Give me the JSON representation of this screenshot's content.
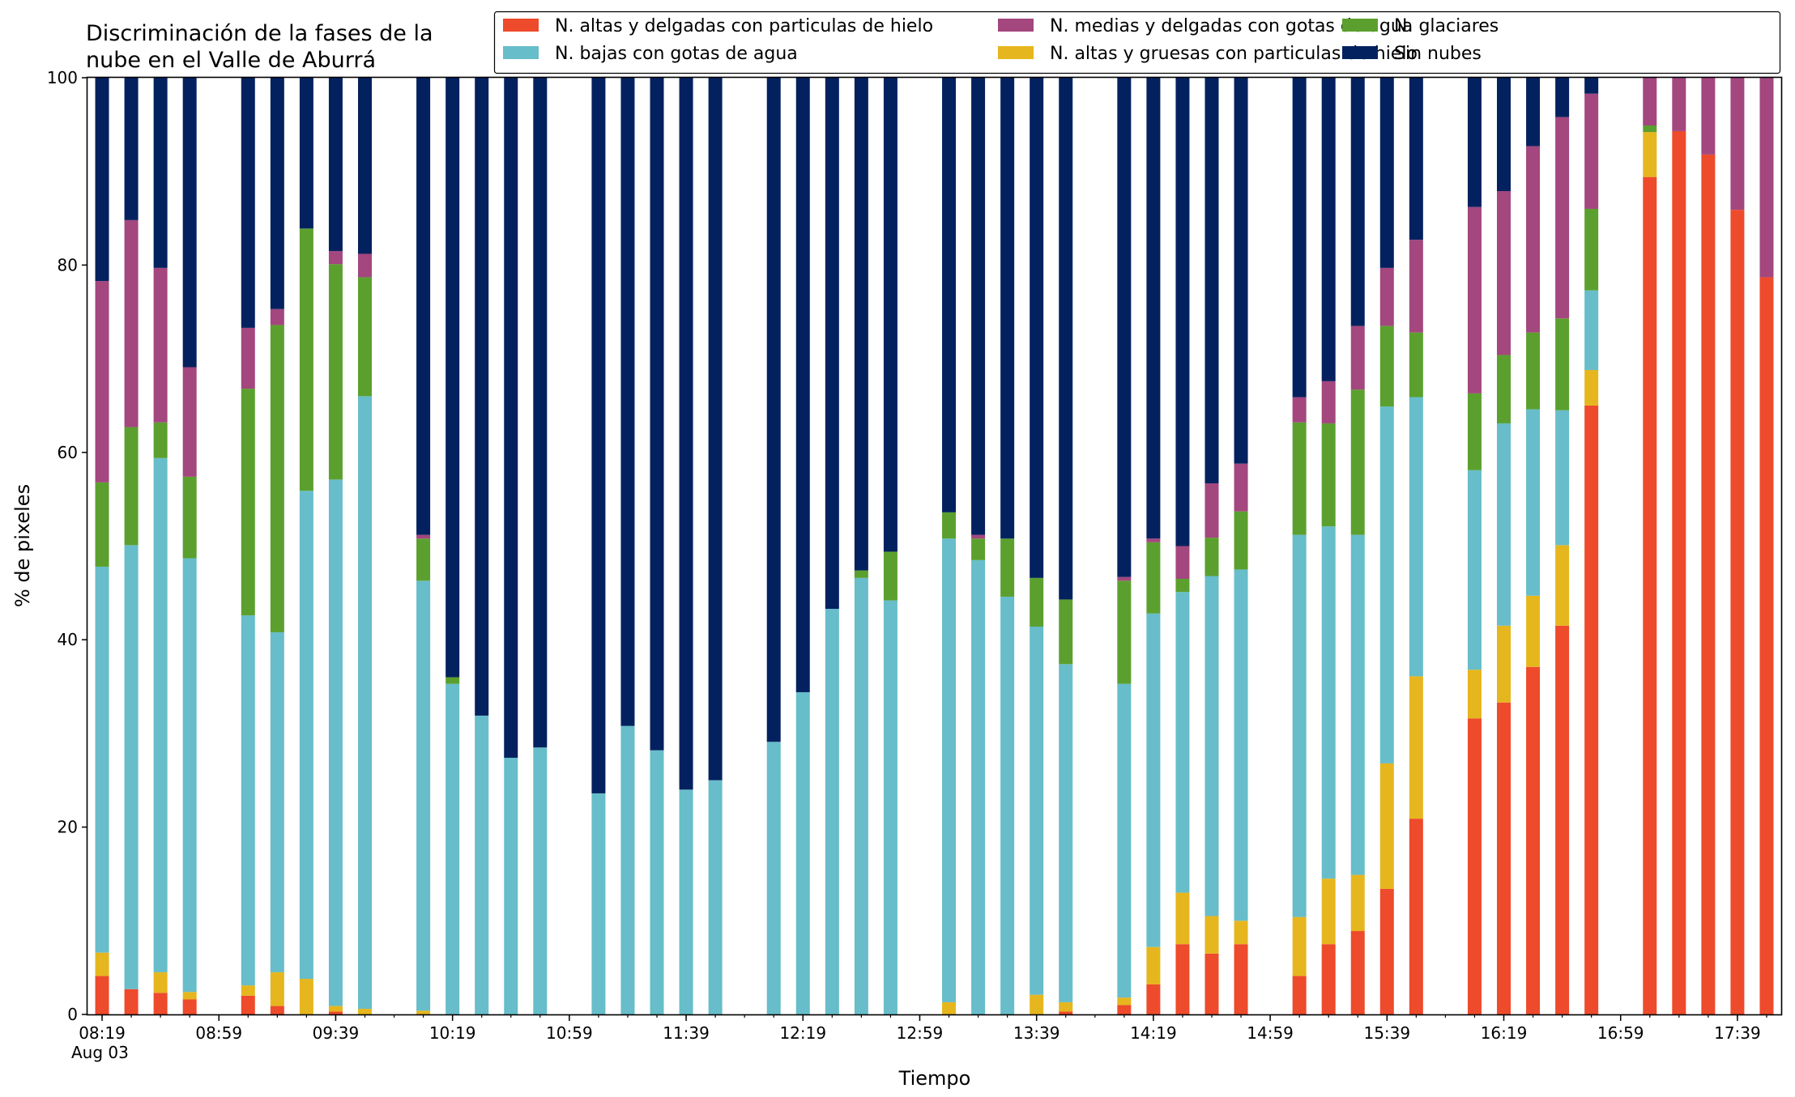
{
  "chart_data": {
    "type": "bar",
    "stacked": true,
    "title_lines": [
      "Discriminación de la fases de la",
      "nube en el Valle de Aburrá"
    ],
    "xlabel": "Tiempo",
    "ylabel": "% de pixeles",
    "ylim": [
      0,
      100
    ],
    "yticks": [
      0,
      20,
      40,
      60,
      80,
      100
    ],
    "grid": false,
    "legend_position": "top-right",
    "xlim_minutes": [
      494,
      1074
    ],
    "x_date_label": "Aug 03",
    "xtick_labels": [
      {
        "minute": 499,
        "label": "08:19"
      },
      {
        "minute": 539,
        "label": "08:59"
      },
      {
        "minute": 579,
        "label": "09:39"
      },
      {
        "minute": 619,
        "label": "10:19"
      },
      {
        "minute": 659,
        "label": "10:59"
      },
      {
        "minute": 699,
        "label": "11:39"
      },
      {
        "minute": 739,
        "label": "12:19"
      },
      {
        "minute": 779,
        "label": "12:59"
      },
      {
        "minute": 819,
        "label": "13:39"
      },
      {
        "minute": 859,
        "label": "14:19"
      },
      {
        "minute": 899,
        "label": "14:59"
      },
      {
        "minute": 939,
        "label": "15:39"
      },
      {
        "minute": 979,
        "label": "16:19"
      },
      {
        "minute": 1019,
        "label": "16:59"
      },
      {
        "minute": 1059,
        "label": "17:39"
      }
    ],
    "minor_tick_step_minutes": 10,
    "series": [
      {
        "key": "altas_delgadas",
        "name": "N. altas y delgadas con particulas de hielo",
        "color": "#ee4a2c"
      },
      {
        "key": "altas_gruesas",
        "name": "N. altas y gruesas con particulas de hielo",
        "color": "#e6b61e"
      },
      {
        "key": "bajas",
        "name": "N. bajas con gotas de agua",
        "color": "#67bdca"
      },
      {
        "key": "glaciares",
        "name": "N. glaciares",
        "color": "#5ba02e"
      },
      {
        "key": "medias",
        "name": "N. medias y delgadas con gotas de agua",
        "color": "#a3477e"
      },
      {
        "key": "sin_nubes",
        "name": "Sin nubes",
        "color": "#04215f"
      }
    ],
    "legend_order": [
      "altas_delgadas",
      "bajas",
      "medias",
      "altas_gruesas",
      "glaciares",
      "sin_nubes"
    ],
    "time_columns": [
      "hh:mm",
      "altas_delgadas",
      "altas_gruesas",
      "bajas",
      "glaciares",
      "medias",
      "sin_nubes"
    ],
    "bars": [
      [
        "08:19",
        4.1,
        2.5,
        41.2,
        9.0,
        21.5,
        21.7
      ],
      [
        "08:29",
        2.7,
        0.0,
        47.4,
        12.6,
        22.1,
        15.2
      ],
      [
        "08:39",
        2.3,
        2.2,
        54.9,
        3.8,
        16.5,
        20.3
      ],
      [
        "08:49",
        1.6,
        0.8,
        46.3,
        8.7,
        11.7,
        30.9
      ],
      [
        "09:09",
        2.0,
        1.1,
        39.5,
        24.2,
        6.5,
        26.7
      ],
      [
        "09:19",
        0.9,
        3.6,
        36.3,
        32.8,
        1.7,
        24.7
      ],
      [
        "09:29",
        0.0,
        3.8,
        52.1,
        28.0,
        0.0,
        16.1
      ],
      [
        "09:39",
        0.3,
        0.6,
        56.2,
        23.0,
        1.4,
        18.5
      ],
      [
        "09:49",
        0.0,
        0.6,
        65.4,
        12.7,
        2.5,
        18.8
      ],
      [
        "10:09",
        0.0,
        0.4,
        45.9,
        4.5,
        0.4,
        48.8
      ],
      [
        "10:19",
        0.0,
        0.0,
        35.3,
        0.7,
        0.0,
        64.0
      ],
      [
        "10:29",
        0.0,
        0.0,
        31.9,
        0.0,
        0.0,
        68.1
      ],
      [
        "10:39",
        0.0,
        0.0,
        27.4,
        0.0,
        0.0,
        72.6
      ],
      [
        "10:49",
        0.0,
        0.0,
        28.5,
        0.0,
        0.0,
        71.5
      ],
      [
        "11:09",
        0.0,
        0.0,
        23.6,
        0.0,
        0.0,
        76.4
      ],
      [
        "11:19",
        0.0,
        0.0,
        30.8,
        0.0,
        0.0,
        69.2
      ],
      [
        "11:29",
        0.0,
        0.0,
        28.2,
        0.0,
        0.0,
        71.8
      ],
      [
        "11:39",
        0.0,
        0.0,
        24.0,
        0.0,
        0.0,
        76.0
      ],
      [
        "11:49",
        0.0,
        0.0,
        25.0,
        0.0,
        0.0,
        75.0
      ],
      [
        "12:09",
        0.0,
        0.0,
        29.1,
        0.0,
        0.0,
        70.9
      ],
      [
        "12:19",
        0.0,
        0.0,
        34.4,
        0.0,
        0.0,
        65.6
      ],
      [
        "12:29",
        0.0,
        0.0,
        43.3,
        0.0,
        0.0,
        56.7
      ],
      [
        "12:39",
        0.0,
        0.0,
        46.6,
        0.8,
        0.0,
        52.6
      ],
      [
        "12:49",
        0.0,
        0.0,
        44.2,
        5.2,
        0.0,
        50.6
      ],
      [
        "13:09",
        0.0,
        1.3,
        49.5,
        2.8,
        0.0,
        46.4
      ],
      [
        "13:19",
        0.0,
        0.0,
        48.5,
        2.3,
        0.4,
        48.8
      ],
      [
        "13:29",
        0.0,
        0.0,
        44.6,
        6.2,
        0.0,
        49.2
      ],
      [
        "13:39",
        0.0,
        2.1,
        39.3,
        5.2,
        0.0,
        53.4
      ],
      [
        "13:49",
        0.3,
        1.0,
        36.1,
        6.9,
        0.0,
        55.7
      ],
      [
        "14:09",
        1.0,
        0.8,
        33.5,
        11.0,
        0.4,
        53.3
      ],
      [
        "14:19",
        3.2,
        4.0,
        35.6,
        7.6,
        0.4,
        49.2
      ],
      [
        "14:29",
        7.5,
        5.5,
        32.1,
        1.4,
        3.5,
        50.0
      ],
      [
        "14:39",
        6.5,
        4.0,
        36.3,
        4.1,
        5.8,
        43.3
      ],
      [
        "14:49",
        7.5,
        2.5,
        37.5,
        6.2,
        5.1,
        41.2
      ],
      [
        "15:09",
        4.1,
        6.3,
        40.8,
        12.0,
        2.7,
        34.1
      ],
      [
        "15:19",
        7.5,
        7.0,
        37.6,
        11.0,
        4.5,
        32.4
      ],
      [
        "15:29",
        8.9,
        6.0,
        36.3,
        15.5,
        6.8,
        26.5
      ],
      [
        "15:39",
        13.4,
        13.4,
        38.1,
        8.6,
        6.2,
        20.3
      ],
      [
        "15:49",
        20.9,
        15.2,
        29.8,
        6.9,
        9.9,
        17.3
      ],
      [
        "16:09",
        31.6,
        5.2,
        21.3,
        8.2,
        19.9,
        13.8
      ],
      [
        "16:19",
        33.3,
        8.2,
        21.6,
        7.3,
        17.5,
        12.1
      ],
      [
        "16:29",
        37.1,
        7.6,
        19.9,
        8.2,
        19.9,
        7.3
      ],
      [
        "16:39",
        41.5,
        8.6,
        14.4,
        9.8,
        21.5,
        4.2
      ],
      [
        "16:49",
        65.0,
        3.8,
        8.5,
        8.7,
        12.3,
        1.7
      ],
      [
        "17:09",
        89.4,
        4.8,
        0.0,
        0.7,
        5.1,
        0.0
      ],
      [
        "17:19",
        94.3,
        0.0,
        0.0,
        0.0,
        5.7,
        0.0
      ],
      [
        "17:29",
        91.8,
        0.0,
        0.0,
        0.0,
        8.2,
        0.0
      ],
      [
        "17:39",
        85.9,
        0.0,
        0.0,
        0.0,
        14.1,
        0.0
      ],
      [
        "17:49",
        78.7,
        0.0,
        0.0,
        0.0,
        21.3,
        0.0
      ]
    ]
  }
}
